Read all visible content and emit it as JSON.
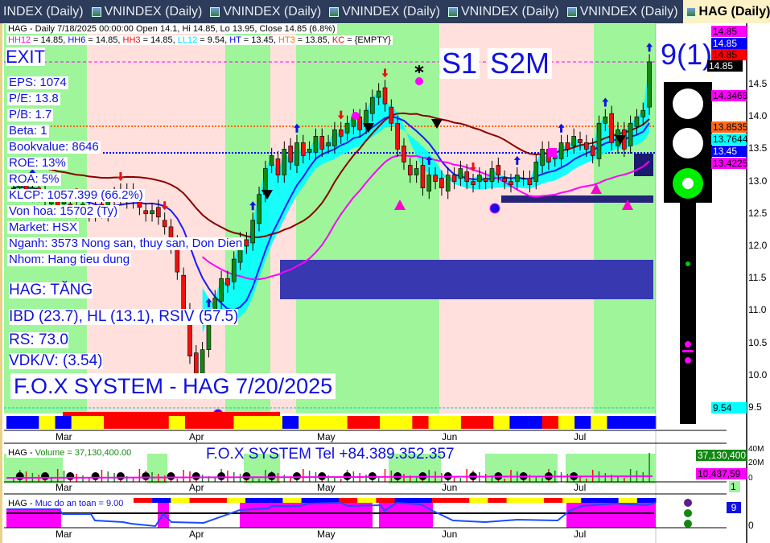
{
  "tabs": [
    {
      "label": "INDEX (Daily)"
    },
    {
      "label": "VNINDEX (Daily)"
    },
    {
      "label": "VNINDEX (Daily)"
    },
    {
      "label": "VNINDEX (Daily)"
    },
    {
      "label": "VNINDEX (Daily)"
    },
    {
      "label": "VNINDEX (Daily)"
    },
    {
      "label": "HAG (Daily)",
      "active": true
    }
  ],
  "tab_nav": "◂ ▸ ▾",
  "close_tab": "×",
  "header": {
    "line1": "HAG - Daily 7/18/2025 00:00:00 Open 14.1, Hi 14.85, Lo 13.95, Close 14.85 (6.8%)",
    "indicators": [
      {
        "name": "HH12",
        "value": " = 14.85, ",
        "color": "#ff00ff"
      },
      {
        "name": "HH6",
        "value": " = 14.85, ",
        "color": "#0000ff"
      },
      {
        "name": "HH3",
        "value": " = 14.85, ",
        "color": "#ff0000"
      },
      {
        "name": "LL12",
        "value": " = 9.54, ",
        "color": "#00e5ff"
      },
      {
        "name": "HT",
        "value": "  = 13.45, ",
        "color": "#0000ff"
      },
      {
        "name": "HT3",
        "value": "  = 13.85, ",
        "color": "#ff6a00"
      },
      {
        "name": "KC",
        "value": " = {EMPTY}",
        "color": "#ff0000"
      }
    ]
  },
  "signals": {
    "exit": "EXIT",
    "s1": "S1",
    "s2m": "S2M",
    "count": "9(1)"
  },
  "fundamentals": [
    "EPS: 1074",
    "P/E: 13.8",
    "P/B: 1.7",
    "Beta: 1",
    "Bookvalue: 8646",
    "ROE: 13%",
    "ROA: 5%",
    "KLCP: 1057.399 (66.2%)",
    "Von hoa: 15702 (Ty)",
    "Market: HSX",
    "Nganh: 3573 Nong san, thuy san, Don Dien",
    "Nhom: Hang tieu dung"
  ],
  "status": {
    "trend": "HAG: TĂNG",
    "ibd": "IBD (23.7), HL (13.1), RSIV (57.5)",
    "rs": "RS: 73.0",
    "vdk": "VDK/V:  (3.54)",
    "watermark": "F.O.X SYSTEM - HAG 7/20/2025"
  },
  "price_axis": {
    "ticks": [
      "14.5",
      "14.0",
      "13.5",
      "13.0",
      "12.5",
      "12.0",
      "11.5",
      "11.0",
      "10.5",
      "10.0",
      "9.5"
    ]
  },
  "price_labels": [
    {
      "text": "14.85",
      "bg": "#ff00ff",
      "fg": "#000"
    },
    {
      "text": "14.85",
      "bg": "#0000ff",
      "fg": "#fff"
    },
    {
      "text": "14.85",
      "bg": "#ff0000",
      "fg": "#000"
    },
    {
      "text": "14.85",
      "bg": "#000000",
      "fg": "#fff"
    },
    {
      "text": "14.3468",
      "bg": "#ff00ff",
      "fg": "#000"
    },
    {
      "text": "13.8535",
      "bg": "#ff6a1a",
      "fg": "#000"
    },
    {
      "text": "13.7644",
      "bg": "#00ffff",
      "fg": "#000"
    },
    {
      "text": "13.45",
      "bg": "#0000ff",
      "fg": "#fff"
    },
    {
      "text": "13.4225",
      "bg": "#ff00ff",
      "fg": "#000"
    },
    {
      "text": "9.54",
      "bg": "#00ffff",
      "fg": "#000"
    }
  ],
  "months": [
    "Mar",
    "Apr",
    "May",
    "Jun",
    "Jul"
  ],
  "volume": {
    "title": "HAG - ",
    "label": "Volume = 37,130,400.00",
    "banner": "F.O.X SYSTEM Tel +84.389.352.357",
    "axis": [
      "40M",
      "20M",
      "0"
    ],
    "last": "37,130,400",
    "avg": "10,487,59",
    "signal": "1"
  },
  "safety": {
    "title": "HAG - ",
    "label": "Muc do an toan = 9.00",
    "value": "9",
    "axis": [
      "0"
    ]
  },
  "chart_data": {
    "type": "candlestick",
    "symbol": "HAG",
    "close": [
      12.9,
      12.95,
      12.85,
      12.9,
      12.8,
      12.7,
      12.75,
      12.6,
      12.7,
      12.6,
      12.55,
      12.65,
      12.5,
      12.6,
      12.55,
      12.7,
      12.8,
      12.75,
      12.85,
      12.7,
      12.6,
      12.5,
      12.55,
      12.45,
      12.3,
      12.0,
      11.6,
      11.0,
      10.3,
      10.0,
      10.4,
      10.9,
      11.2,
      11.5,
      11.4,
      11.8,
      12.1,
      12.0,
      12.4,
      12.8,
      13.2,
      13.4,
      13.1,
      13.5,
      13.3,
      13.6,
      13.4,
      13.5,
      13.7,
      13.5,
      13.6,
      13.8,
      13.7,
      13.9,
      14.0,
      13.8,
      14.1,
      14.3,
      14.4,
      14.2,
      13.9,
      13.5,
      13.3,
      13.1,
      13.2,
      12.9,
      13.1,
      13.0,
      12.9,
      13.1,
      13.0,
      13.2,
      13.0,
      12.95,
      13.1,
      13.0,
      13.2,
      13.1,
      13.0,
      12.95,
      13.1,
      13.05,
      12.95,
      13.3,
      13.5,
      13.3,
      13.4,
      13.6,
      13.5,
      13.7,
      13.6,
      13.5,
      13.4,
      13.9,
      14.0,
      13.6,
      13.8,
      13.5,
      13.9,
      14.0,
      14.1,
      14.85
    ]
  },
  "colors": {
    "up": "#118811",
    "down": "#ee1111",
    "bull_band": "#9ef59a",
    "bear_band": "#ffe0dc",
    "ribbon": "#00ffff"
  }
}
